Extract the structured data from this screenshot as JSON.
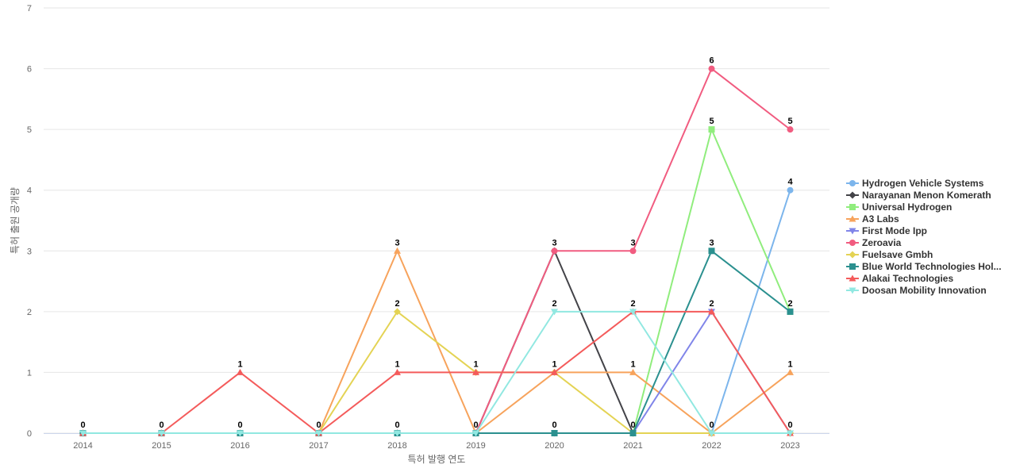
{
  "chart_data": {
    "type": "line",
    "title": "",
    "xlabel": "특허 발행 연도",
    "ylabel": "특허 출원 공개량",
    "x": [
      "2014",
      "2015",
      "2016",
      "2017",
      "2018",
      "2019",
      "2020",
      "2021",
      "2022",
      "2023"
    ],
    "ylim": [
      0,
      7
    ],
    "yticks": [
      0,
      1,
      2,
      3,
      4,
      5,
      6,
      7
    ],
    "grid": true,
    "legend_position": "right",
    "series": [
      {
        "name": "Hydrogen Vehicle Systems",
        "color": "#7cb5ec",
        "marker": "circle",
        "values": [
          0,
          0,
          0,
          0,
          0,
          0,
          0,
          0,
          0,
          4
        ]
      },
      {
        "name": "Narayanan Menon Komerath",
        "color": "#434348",
        "marker": "diamond",
        "values": [
          0,
          0,
          0,
          0,
          0,
          0,
          3,
          0,
          0,
          0
        ]
      },
      {
        "name": "Universal Hydrogen",
        "color": "#90ed7d",
        "marker": "square",
        "values": [
          0,
          0,
          0,
          0,
          0,
          0,
          0,
          0,
          5,
          2
        ]
      },
      {
        "name": "A3 Labs",
        "color": "#f7a35c",
        "marker": "triangle",
        "values": [
          0,
          0,
          0,
          0,
          3,
          0,
          1,
          1,
          0,
          1
        ]
      },
      {
        "name": "First Mode Ipp",
        "color": "#8085e9",
        "marker": "triangle-down",
        "values": [
          0,
          0,
          0,
          0,
          0,
          0,
          0,
          0,
          2,
          0
        ]
      },
      {
        "name": "Zeroavia",
        "color": "#f15c80",
        "marker": "circle",
        "values": [
          0,
          0,
          0,
          0,
          0,
          0,
          3,
          3,
          6,
          5
        ]
      },
      {
        "name": "Fuelsave Gmbh",
        "color": "#e4d354",
        "marker": "diamond",
        "values": [
          0,
          0,
          0,
          0,
          2,
          1,
          1,
          0,
          0,
          0
        ]
      },
      {
        "name": "Blue World Technologies Hol...",
        "color": "#2b908f",
        "marker": "square",
        "values": [
          0,
          0,
          0,
          0,
          0,
          0,
          0,
          0,
          3,
          2
        ]
      },
      {
        "name": "Alakai Technologies",
        "color": "#f45b5b",
        "marker": "triangle",
        "values": [
          0,
          0,
          1,
          0,
          1,
          1,
          1,
          2,
          2,
          0
        ]
      },
      {
        "name": "Doosan Mobility Innovation",
        "color": "#91e8e1",
        "marker": "triangle-down",
        "values": [
          0,
          0,
          0,
          0,
          0,
          0,
          2,
          2,
          0,
          0
        ]
      }
    ],
    "data_labels": [
      {
        "x": "2014",
        "value": 0
      },
      {
        "x": "2015",
        "value": 0
      },
      {
        "x": "2016",
        "value": 1
      },
      {
        "x": "2016",
        "value": 0
      },
      {
        "x": "2017",
        "value": 0
      },
      {
        "x": "2018",
        "value": 3
      },
      {
        "x": "2018",
        "value": 2
      },
      {
        "x": "2018",
        "value": 1
      },
      {
        "x": "2018",
        "value": 0
      },
      {
        "x": "2019",
        "value": 1
      },
      {
        "x": "2019",
        "value": 0
      },
      {
        "x": "2020",
        "value": 3
      },
      {
        "x": "2020",
        "value": 2
      },
      {
        "x": "2020",
        "value": 1
      },
      {
        "x": "2020",
        "value": 0
      },
      {
        "x": "2021",
        "value": 3
      },
      {
        "x": "2021",
        "value": 2
      },
      {
        "x": "2021",
        "value": 1
      },
      {
        "x": "2021",
        "value": 0
      },
      {
        "x": "2022",
        "value": 6
      },
      {
        "x": "2022",
        "value": 5
      },
      {
        "x": "2022",
        "value": 3
      },
      {
        "x": "2022",
        "value": 2
      },
      {
        "x": "2022",
        "value": 0
      },
      {
        "x": "2023",
        "value": 5
      },
      {
        "x": "2023",
        "value": 4
      },
      {
        "x": "2023",
        "value": 2
      },
      {
        "x": "2023",
        "value": 1
      },
      {
        "x": "2023",
        "value": 0
      }
    ]
  }
}
